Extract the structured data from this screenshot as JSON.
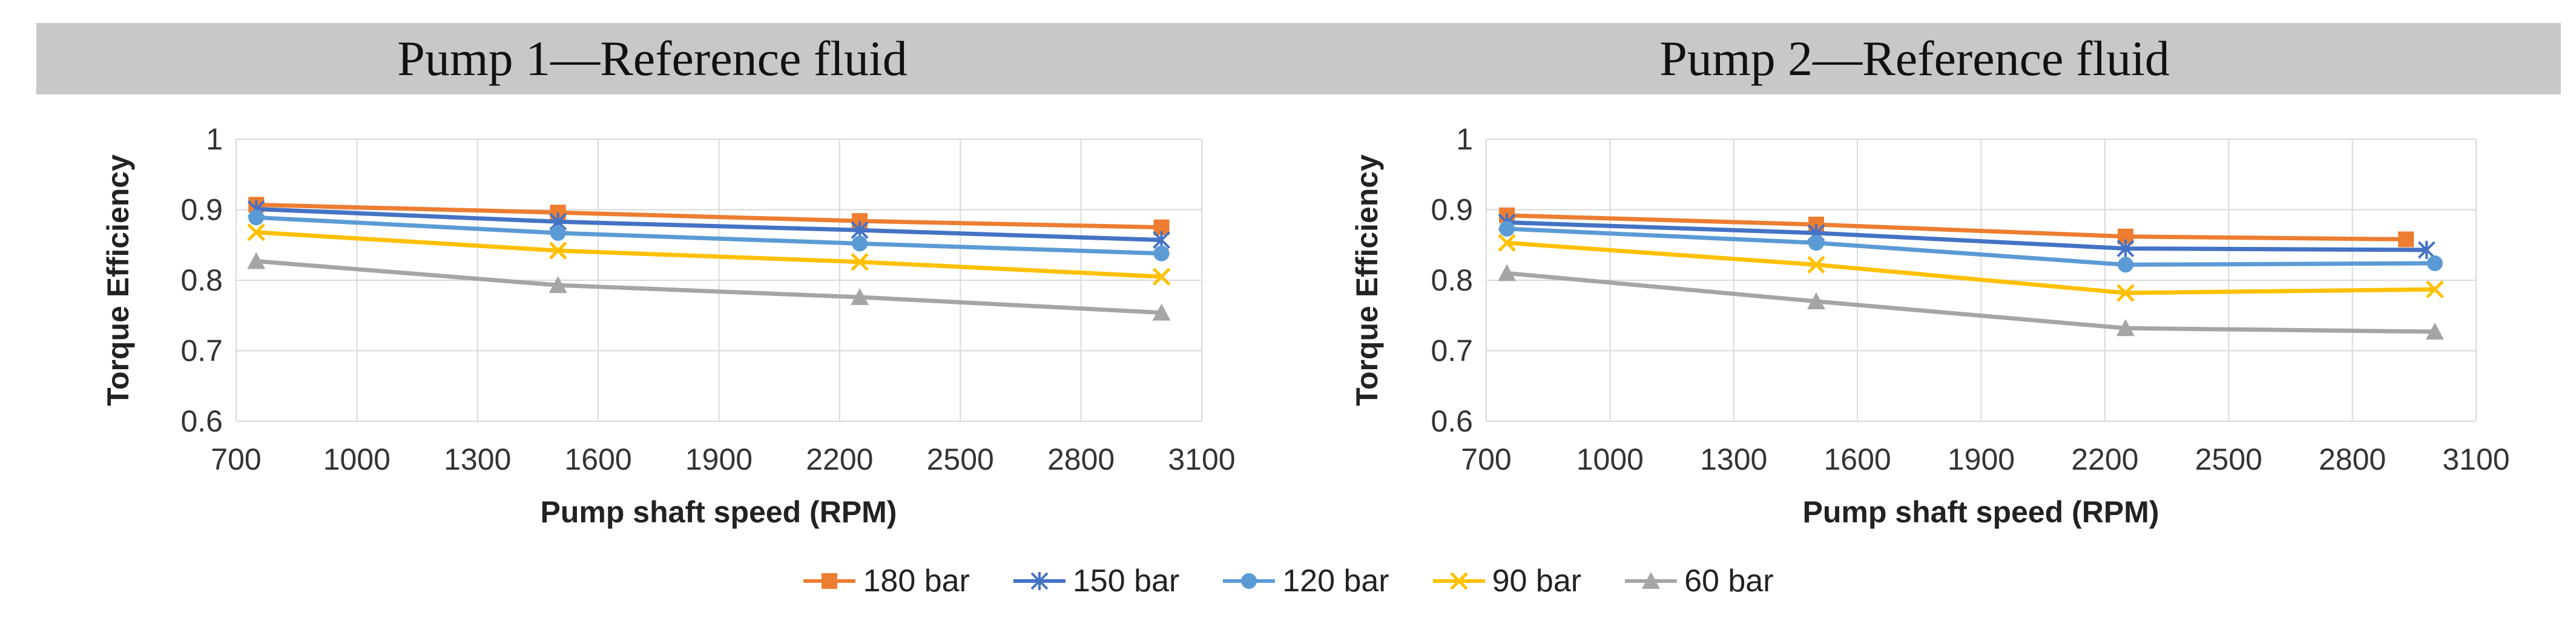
{
  "chart_data": [
    {
      "type": "line",
      "title": "Pump 1—Reference fluid",
      "xlabel": "Pump shaft speed (RPM)",
      "ylabel": "Torque Efficiency",
      "xlim": [
        700,
        3100
      ],
      "ylim": [
        0.6,
        1
      ],
      "xticks": [
        "700",
        "1000",
        "1300",
        "1600",
        "1900",
        "2200",
        "2500",
        "2800",
        "3100"
      ],
      "yticks": [
        "0.6",
        "0.7",
        "0.8",
        "0.9",
        "1"
      ],
      "series": [
        {
          "name": "180 bar",
          "x": [
            750,
            1500,
            2250,
            3000
          ],
          "values": [
            0.907,
            0.896,
            0.884,
            0.875
          ]
        },
        {
          "name": "150 bar",
          "x": [
            750,
            1500,
            2250,
            3000
          ],
          "values": [
            0.901,
            0.883,
            0.871,
            0.857
          ]
        },
        {
          "name": "120 bar",
          "x": [
            750,
            1500,
            2250,
            3000
          ],
          "values": [
            0.889,
            0.867,
            0.852,
            0.838
          ]
        },
        {
          "name": "90 bar",
          "x": [
            750,
            1500,
            2250,
            3000
          ],
          "values": [
            0.868,
            0.842,
            0.826,
            0.805
          ]
        },
        {
          "name": "60 bar",
          "x": [
            750,
            1500,
            2250,
            3000
          ],
          "values": [
            0.827,
            0.793,
            0.776,
            0.754
          ]
        }
      ]
    },
    {
      "type": "line",
      "title": "Pump 2—Reference fluid",
      "xlabel": "Pump shaft speed (RPM)",
      "ylabel": "Torque Efficiency",
      "xlim": [
        700,
        3100
      ],
      "ylim": [
        0.6,
        1
      ],
      "xticks": [
        "700",
        "1000",
        "1300",
        "1600",
        "1900",
        "2200",
        "2500",
        "2800",
        "3100"
      ],
      "yticks": [
        "0.6",
        "0.7",
        "0.8",
        "0.9",
        "1"
      ],
      "series": [
        {
          "name": "180 bar",
          "x": [
            750,
            1500,
            2250,
            2930
          ],
          "values": [
            0.892,
            0.879,
            0.862,
            0.858
          ]
        },
        {
          "name": "150 bar",
          "x": [
            750,
            1500,
            2250,
            2980
          ],
          "values": [
            0.882,
            0.867,
            0.845,
            0.843
          ]
        },
        {
          "name": "120 bar",
          "x": [
            750,
            1500,
            2250,
            3000
          ],
          "values": [
            0.873,
            0.853,
            0.822,
            0.824
          ]
        },
        {
          "name": "90 bar",
          "x": [
            750,
            1500,
            2250,
            3000
          ],
          "values": [
            0.853,
            0.822,
            0.782,
            0.787
          ]
        },
        {
          "name": "60 bar",
          "x": [
            750,
            1500,
            2250,
            3000
          ],
          "values": [
            0.81,
            0.77,
            0.732,
            0.727
          ]
        }
      ]
    }
  ],
  "legend": [
    {
      "label": "180 bar",
      "color": "#ED7D31",
      "marker": "square"
    },
    {
      "label": "150 bar",
      "color": "#4472C4",
      "marker": "star"
    },
    {
      "label": "120 bar",
      "color": "#5B9BD5",
      "marker": "circle"
    },
    {
      "label": "90 bar",
      "color": "#FFC000",
      "marker": "x"
    },
    {
      "label": "60 bar",
      "color": "#A5A5A5",
      "marker": "triangle"
    }
  ]
}
